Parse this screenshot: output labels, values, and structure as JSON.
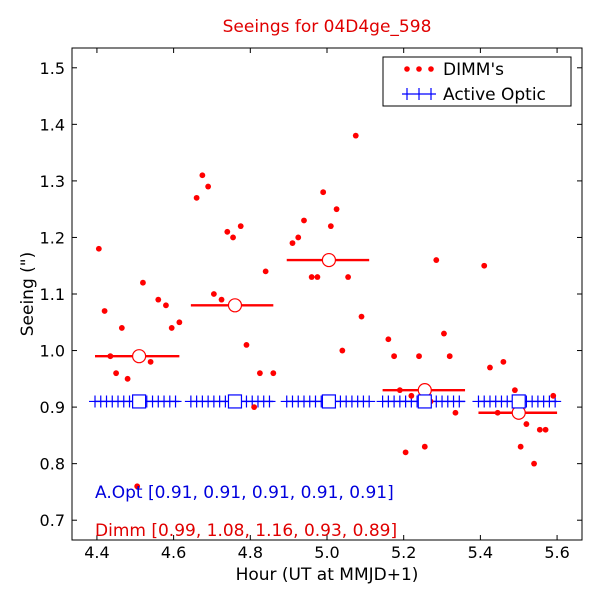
{
  "chart_data": {
    "type": "scatter",
    "title": "Seeings for 04D4ge_598",
    "xlabel": "Hour (UT at MMJD+1)",
    "ylabel": "Seeing (\")",
    "xlim": [
      4.335,
      5.665
    ],
    "ylim": [
      0.665,
      1.535
    ],
    "xticks": [
      4.4,
      4.6,
      4.8,
      5.0,
      5.2,
      5.4,
      5.6
    ],
    "xtick_labels": [
      "4.4",
      "4.6",
      "4.8",
      "5.0",
      "5.2",
      "5.4",
      "5.6"
    ],
    "yticks": [
      0.7,
      0.8,
      0.9,
      1.0,
      1.1,
      1.2,
      1.3,
      1.4,
      1.5
    ],
    "ytick_labels": [
      "0.7",
      "0.8",
      "0.9",
      "1.0",
      "1.1",
      "1.2",
      "1.3",
      "1.4",
      "1.5"
    ],
    "grid": false,
    "legend": {
      "placement": "top-right",
      "entries": [
        {
          "label": "DIMM's",
          "marker": "dots",
          "color": "#ff0000"
        },
        {
          "label": "Active Optic",
          "marker": "plus",
          "color": "#0000ff"
        }
      ]
    },
    "colors": {
      "dimm": "#ff0000",
      "active_optic": "#0000ff",
      "title": "#e00000"
    },
    "dimm_points": [
      [
        4.405,
        1.18
      ],
      [
        4.42,
        1.07
      ],
      [
        4.435,
        0.99
      ],
      [
        4.45,
        0.96
      ],
      [
        4.465,
        1.04
      ],
      [
        4.48,
        0.95
      ],
      [
        4.505,
        0.76
      ],
      [
        4.52,
        1.12
      ],
      [
        4.54,
        0.98
      ],
      [
        4.56,
        1.09
      ],
      [
        4.58,
        1.08
      ],
      [
        4.595,
        1.04
      ],
      [
        4.615,
        1.05
      ],
      [
        4.66,
        1.27
      ],
      [
        4.675,
        1.31
      ],
      [
        4.69,
        1.29
      ],
      [
        4.705,
        1.1
      ],
      [
        4.725,
        1.09
      ],
      [
        4.74,
        1.21
      ],
      [
        4.755,
        1.2
      ],
      [
        4.775,
        1.22
      ],
      [
        4.79,
        1.01
      ],
      [
        4.81,
        0.9
      ],
      [
        4.825,
        0.96
      ],
      [
        4.84,
        1.14
      ],
      [
        4.86,
        0.96
      ],
      [
        4.91,
        1.19
      ],
      [
        4.925,
        1.2
      ],
      [
        4.94,
        1.23
      ],
      [
        4.96,
        1.13
      ],
      [
        4.975,
        1.13
      ],
      [
        4.99,
        1.28
      ],
      [
        5.01,
        1.22
      ],
      [
        5.025,
        1.25
      ],
      [
        5.04,
        1.0
      ],
      [
        5.055,
        1.13
      ],
      [
        5.075,
        1.38
      ],
      [
        5.09,
        1.06
      ],
      [
        5.16,
        1.02
      ],
      [
        5.175,
        0.99
      ],
      [
        5.19,
        0.93
      ],
      [
        5.205,
        0.82
      ],
      [
        5.22,
        0.92
      ],
      [
        5.24,
        0.99
      ],
      [
        5.255,
        0.83
      ],
      [
        5.27,
        0.91
      ],
      [
        5.285,
        1.16
      ],
      [
        5.305,
        1.03
      ],
      [
        5.32,
        0.99
      ],
      [
        5.335,
        0.89
      ],
      [
        5.41,
        1.15
      ],
      [
        5.425,
        0.97
      ],
      [
        5.445,
        0.89
      ],
      [
        5.46,
        0.98
      ],
      [
        5.49,
        0.93
      ],
      [
        5.505,
        0.83
      ],
      [
        5.52,
        0.87
      ],
      [
        5.54,
        0.8
      ],
      [
        5.555,
        0.86
      ],
      [
        5.57,
        0.86
      ],
      [
        5.59,
        0.92
      ]
    ],
    "active_optic_points": [
      [
        4.395,
        0.91
      ],
      [
        4.41,
        0.91
      ],
      [
        4.425,
        0.91
      ],
      [
        4.44,
        0.91
      ],
      [
        4.455,
        0.91
      ],
      [
        4.47,
        0.91
      ],
      [
        4.485,
        0.91
      ],
      [
        4.5,
        0.91
      ],
      [
        4.53,
        0.91
      ],
      [
        4.545,
        0.91
      ],
      [
        4.56,
        0.91
      ],
      [
        4.575,
        0.91
      ],
      [
        4.59,
        0.91
      ],
      [
        4.605,
        0.91
      ],
      [
        4.645,
        0.91
      ],
      [
        4.66,
        0.91
      ],
      [
        4.675,
        0.91
      ],
      [
        4.69,
        0.91
      ],
      [
        4.705,
        0.91
      ],
      [
        4.72,
        0.91
      ],
      [
        4.735,
        0.91
      ],
      [
        4.775,
        0.91
      ],
      [
        4.79,
        0.91
      ],
      [
        4.805,
        0.91
      ],
      [
        4.82,
        0.91
      ],
      [
        4.835,
        0.91
      ],
      [
        4.85,
        0.91
      ],
      [
        4.895,
        0.91
      ],
      [
        4.91,
        0.91
      ],
      [
        4.925,
        0.91
      ],
      [
        4.94,
        0.91
      ],
      [
        4.955,
        0.91
      ],
      [
        4.97,
        0.91
      ],
      [
        4.985,
        0.91
      ],
      [
        5.02,
        0.91
      ],
      [
        5.035,
        0.91
      ],
      [
        5.05,
        0.91
      ],
      [
        5.065,
        0.91
      ],
      [
        5.08,
        0.91
      ],
      [
        5.095,
        0.91
      ],
      [
        5.11,
        0.91
      ],
      [
        5.145,
        0.91
      ],
      [
        5.16,
        0.91
      ],
      [
        5.175,
        0.91
      ],
      [
        5.19,
        0.91
      ],
      [
        5.205,
        0.91
      ],
      [
        5.22,
        0.91
      ],
      [
        5.235,
        0.91
      ],
      [
        5.27,
        0.91
      ],
      [
        5.285,
        0.91
      ],
      [
        5.3,
        0.91
      ],
      [
        5.315,
        0.91
      ],
      [
        5.33,
        0.91
      ],
      [
        5.345,
        0.91
      ],
      [
        5.395,
        0.91
      ],
      [
        5.41,
        0.91
      ],
      [
        5.425,
        0.91
      ],
      [
        5.44,
        0.91
      ],
      [
        5.455,
        0.91
      ],
      [
        5.47,
        0.91
      ],
      [
        5.485,
        0.91
      ],
      [
        5.52,
        0.91
      ],
      [
        5.535,
        0.91
      ],
      [
        5.55,
        0.91
      ],
      [
        5.565,
        0.91
      ],
      [
        5.58,
        0.91
      ],
      [
        5.595,
        0.91
      ]
    ],
    "bins": [
      {
        "x_start": 4.395,
        "x_end": 4.615,
        "center": 4.51,
        "dimm_mean": 0.99,
        "ao_mean": 0.91
      },
      {
        "x_start": 4.645,
        "x_end": 4.86,
        "center": 4.76,
        "dimm_mean": 1.08,
        "ao_mean": 0.91
      },
      {
        "x_start": 4.895,
        "x_end": 5.11,
        "center": 5.005,
        "dimm_mean": 1.16,
        "ao_mean": 0.91
      },
      {
        "x_start": 5.145,
        "x_end": 5.36,
        "center": 5.255,
        "dimm_mean": 0.93,
        "ao_mean": 0.91
      },
      {
        "x_start": 5.395,
        "x_end": 5.6,
        "center": 5.5,
        "dimm_mean": 0.89,
        "ao_mean": 0.91
      }
    ],
    "annotations": {
      "active_optic": "A.Opt [0.91, 0.91, 0.91, 0.91, 0.91]",
      "dimm": "Dimm [0.99, 1.08, 1.16, 0.93, 0.89]"
    }
  }
}
